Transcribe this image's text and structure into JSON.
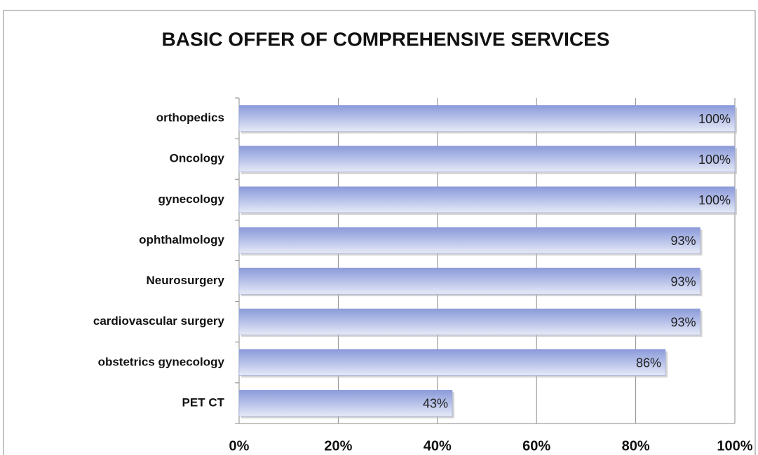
{
  "chart_data": {
    "type": "bar",
    "orientation": "horizontal",
    "title": "BASIC OFFER OF COMPREHENSIVE SERVICES",
    "categories": [
      "orthopedics",
      "Oncology",
      "gynecology",
      "ophthalmology",
      "Neurosurgery",
      "cardiovascular surgery",
      "obstetrics gynecology",
      "PET CT"
    ],
    "values": [
      100,
      100,
      100,
      93,
      93,
      93,
      86,
      43
    ],
    "value_labels": [
      "100%",
      "100%",
      "100%",
      "93%",
      "93%",
      "93%",
      "86%",
      "43%"
    ],
    "color": "#95a3dd",
    "xlim": [
      0,
      100
    ],
    "xticks": [
      {
        "value": 0,
        "label": "0%"
      },
      {
        "value": 20,
        "label": "20%"
      },
      {
        "value": 40,
        "label": "40%"
      },
      {
        "value": 60,
        "label": "60%"
      },
      {
        "value": 80,
        "label": "80%"
      },
      {
        "value": 100,
        "label": "100%"
      }
    ],
    "grid": true
  }
}
